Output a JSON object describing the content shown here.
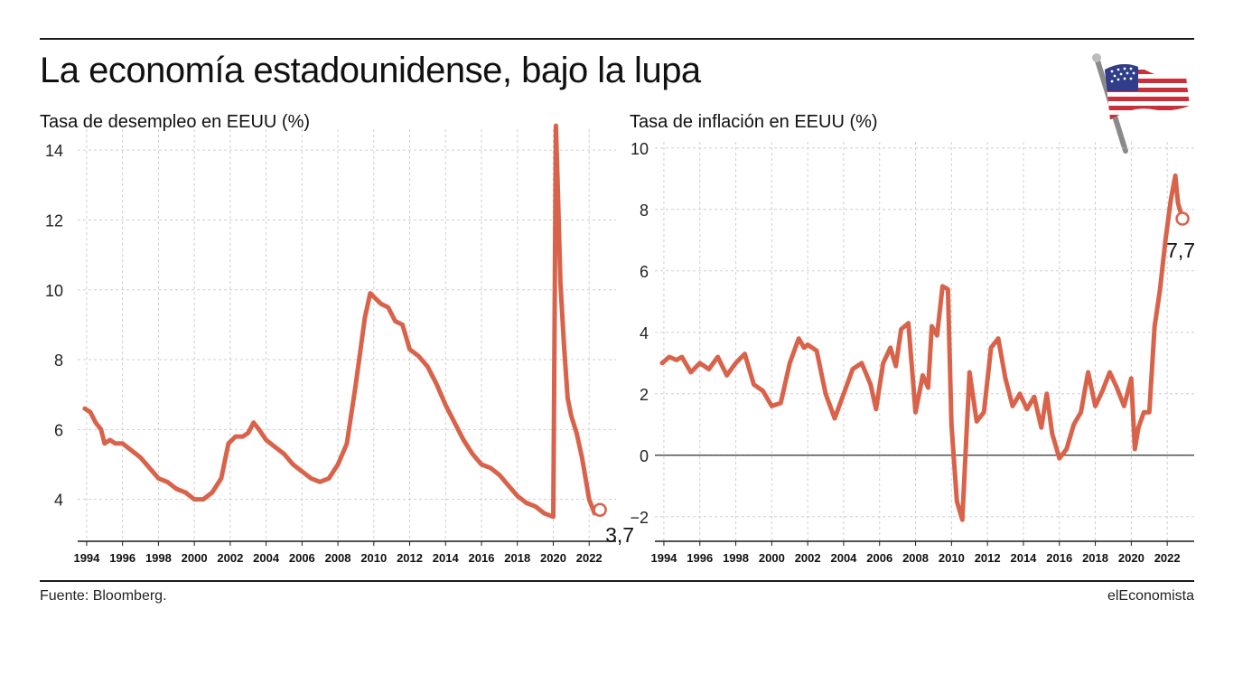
{
  "title": "La economía estadounidense, bajo la lupa",
  "footer": {
    "source": "Fuente: Bloomberg.",
    "brand": "elEconomista"
  },
  "colors": {
    "line": "#d9634a",
    "grid": "#cfcfcf",
    "axis": "#1a1a1a",
    "text": "#111111"
  },
  "flag_icon": "us-flag-icon",
  "chart_data": [
    {
      "type": "line",
      "title": "Tasa de desempleo en EEUU (%)",
      "xlabel": "",
      "ylabel": "",
      "xlim": [
        1993.5,
        2023.5
      ],
      "ylim": [
        2.8,
        14.6
      ],
      "yticks": [
        4,
        6,
        8,
        10,
        12,
        14
      ],
      "ytick_labels": [
        "4",
        "6",
        "8",
        "10",
        "12",
        "14"
      ],
      "xticks": [
        1994,
        1996,
        1998,
        2000,
        2002,
        2004,
        2006,
        2008,
        2010,
        2012,
        2014,
        2016,
        2018,
        2020,
        2022
      ],
      "xtick_labels": [
        "1994",
        "1996",
        "1998",
        "2000",
        "2002",
        "2004",
        "2006",
        "2008",
        "2010",
        "2012",
        "2014",
        "2016",
        "2018",
        "2020",
        "2022"
      ],
      "grid": true,
      "end_label": "3,7",
      "series": [
        {
          "x": [
            1993.9,
            1994.2,
            1994.5,
            1994.8,
            1995.0,
            1995.3,
            1995.6,
            1996.0,
            1996.5,
            1997.0,
            1997.5,
            1998.0,
            1998.5,
            1999.0,
            1999.5,
            2000.0,
            2000.5,
            2001.0,
            2001.5,
            2001.9,
            2002.3,
            2002.7,
            2003.0,
            2003.3,
            2003.6,
            2004.0,
            2004.5,
            2005.0,
            2005.5,
            2006.0,
            2006.5,
            2007.0,
            2007.5,
            2008.0,
            2008.5,
            2009.0,
            2009.5,
            2009.8,
            2010.0,
            2010.4,
            2010.8,
            2011.2,
            2011.6,
            2012.0,
            2012.5,
            2013.0,
            2013.5,
            2014.0,
            2014.5,
            2015.0,
            2015.5,
            2016.0,
            2016.5,
            2017.0,
            2017.5,
            2018.0,
            2018.5,
            2019.0,
            2019.5,
            2020.0,
            2020.15,
            2020.25,
            2020.4,
            2020.6,
            2020.8,
            2021.0,
            2021.3,
            2021.6,
            2022.0,
            2022.3,
            2022.6
          ],
          "y": [
            6.6,
            6.5,
            6.2,
            6.0,
            5.6,
            5.7,
            5.6,
            5.6,
            5.4,
            5.2,
            4.9,
            4.6,
            4.5,
            4.3,
            4.2,
            4.0,
            4.0,
            4.2,
            4.6,
            5.6,
            5.8,
            5.8,
            5.9,
            6.2,
            6.0,
            5.7,
            5.5,
            5.3,
            5.0,
            4.8,
            4.6,
            4.5,
            4.6,
            5.0,
            5.6,
            7.3,
            9.2,
            9.9,
            9.8,
            9.6,
            9.5,
            9.1,
            9.0,
            8.3,
            8.1,
            7.8,
            7.3,
            6.7,
            6.2,
            5.7,
            5.3,
            5.0,
            4.9,
            4.7,
            4.4,
            4.1,
            3.9,
            3.8,
            3.6,
            3.5,
            14.7,
            13.0,
            10.2,
            8.4,
            6.9,
            6.4,
            5.9,
            5.2,
            4.0,
            3.6,
            3.7
          ]
        }
      ]
    },
    {
      "type": "line",
      "title": "Tasa de inflación en EEUU (%)",
      "xlabel": "",
      "ylabel": "",
      "xlim": [
        1993.5,
        2023.5
      ],
      "ylim": [
        -2.8,
        10.2
      ],
      "yticks": [
        -2,
        0,
        2,
        4,
        6,
        8,
        10
      ],
      "ytick_labels": [
        "−2",
        "0",
        "2",
        "4",
        "6",
        "8",
        "10"
      ],
      "xticks": [
        1994,
        1996,
        1998,
        2000,
        2002,
        2004,
        2006,
        2008,
        2010,
        2012,
        2014,
        2016,
        2018,
        2020,
        2022
      ],
      "xtick_labels": [
        "1994",
        "1996",
        "1998",
        "2000",
        "2002",
        "2004",
        "2006",
        "2008",
        "2010",
        "2012",
        "2014",
        "2016",
        "2018",
        "2020",
        "2022"
      ],
      "grid": true,
      "zero_line": true,
      "end_label": "7,7",
      "series": [
        {
          "x": [
            1993.9,
            1994.3,
            1994.7,
            1995.0,
            1995.5,
            1996.0,
            1996.5,
            1997.0,
            1997.5,
            1998.0,
            1998.5,
            1999.0,
            1999.5,
            2000.0,
            2000.5,
            2001.0,
            2001.5,
            2001.8,
            2002.0,
            2002.5,
            2003.0,
            2003.5,
            2004.0,
            2004.5,
            2005.0,
            2005.5,
            2005.8,
            2006.2,
            2006.6,
            2006.9,
            2007.2,
            2007.6,
            2008.0,
            2008.4,
            2008.7,
            2008.9,
            2009.2,
            2009.5,
            2009.8,
            2010.0,
            2010.3,
            2010.6,
            2011.0,
            2011.4,
            2011.8,
            2012.2,
            2012.6,
            2013.0,
            2013.4,
            2013.8,
            2014.2,
            2014.6,
            2015.0,
            2015.3,
            2015.6,
            2016.0,
            2016.4,
            2016.8,
            2017.2,
            2017.6,
            2018.0,
            2018.4,
            2018.8,
            2019.2,
            2019.6,
            2020.0,
            2020.2,
            2020.4,
            2020.7,
            2021.0,
            2021.3,
            2021.6,
            2021.9,
            2022.2,
            2022.45,
            2022.6,
            2022.85
          ],
          "y": [
            3.0,
            3.2,
            3.1,
            3.2,
            2.7,
            3.0,
            2.8,
            3.2,
            2.6,
            3.0,
            3.3,
            2.3,
            2.1,
            1.6,
            1.7,
            3.0,
            3.8,
            3.5,
            3.6,
            3.4,
            2.0,
            1.2,
            2.0,
            2.8,
            3.0,
            2.3,
            1.5,
            3.0,
            3.5,
            2.9,
            4.1,
            4.3,
            1.4,
            2.6,
            2.2,
            4.2,
            3.9,
            5.5,
            5.4,
            1.0,
            -1.5,
            -2.1,
            2.7,
            1.1,
            1.4,
            3.5,
            3.8,
            2.5,
            1.6,
            2.0,
            1.5,
            1.9,
            0.9,
            2.0,
            0.7,
            -0.1,
            0.2,
            1.0,
            1.4,
            2.7,
            1.6,
            2.1,
            2.7,
            2.2,
            1.6,
            2.5,
            0.2,
            0.9,
            1.4,
            1.4,
            4.2,
            5.4,
            7.0,
            8.3,
            9.1,
            8.2,
            7.7
          ]
        }
      ]
    }
  ]
}
